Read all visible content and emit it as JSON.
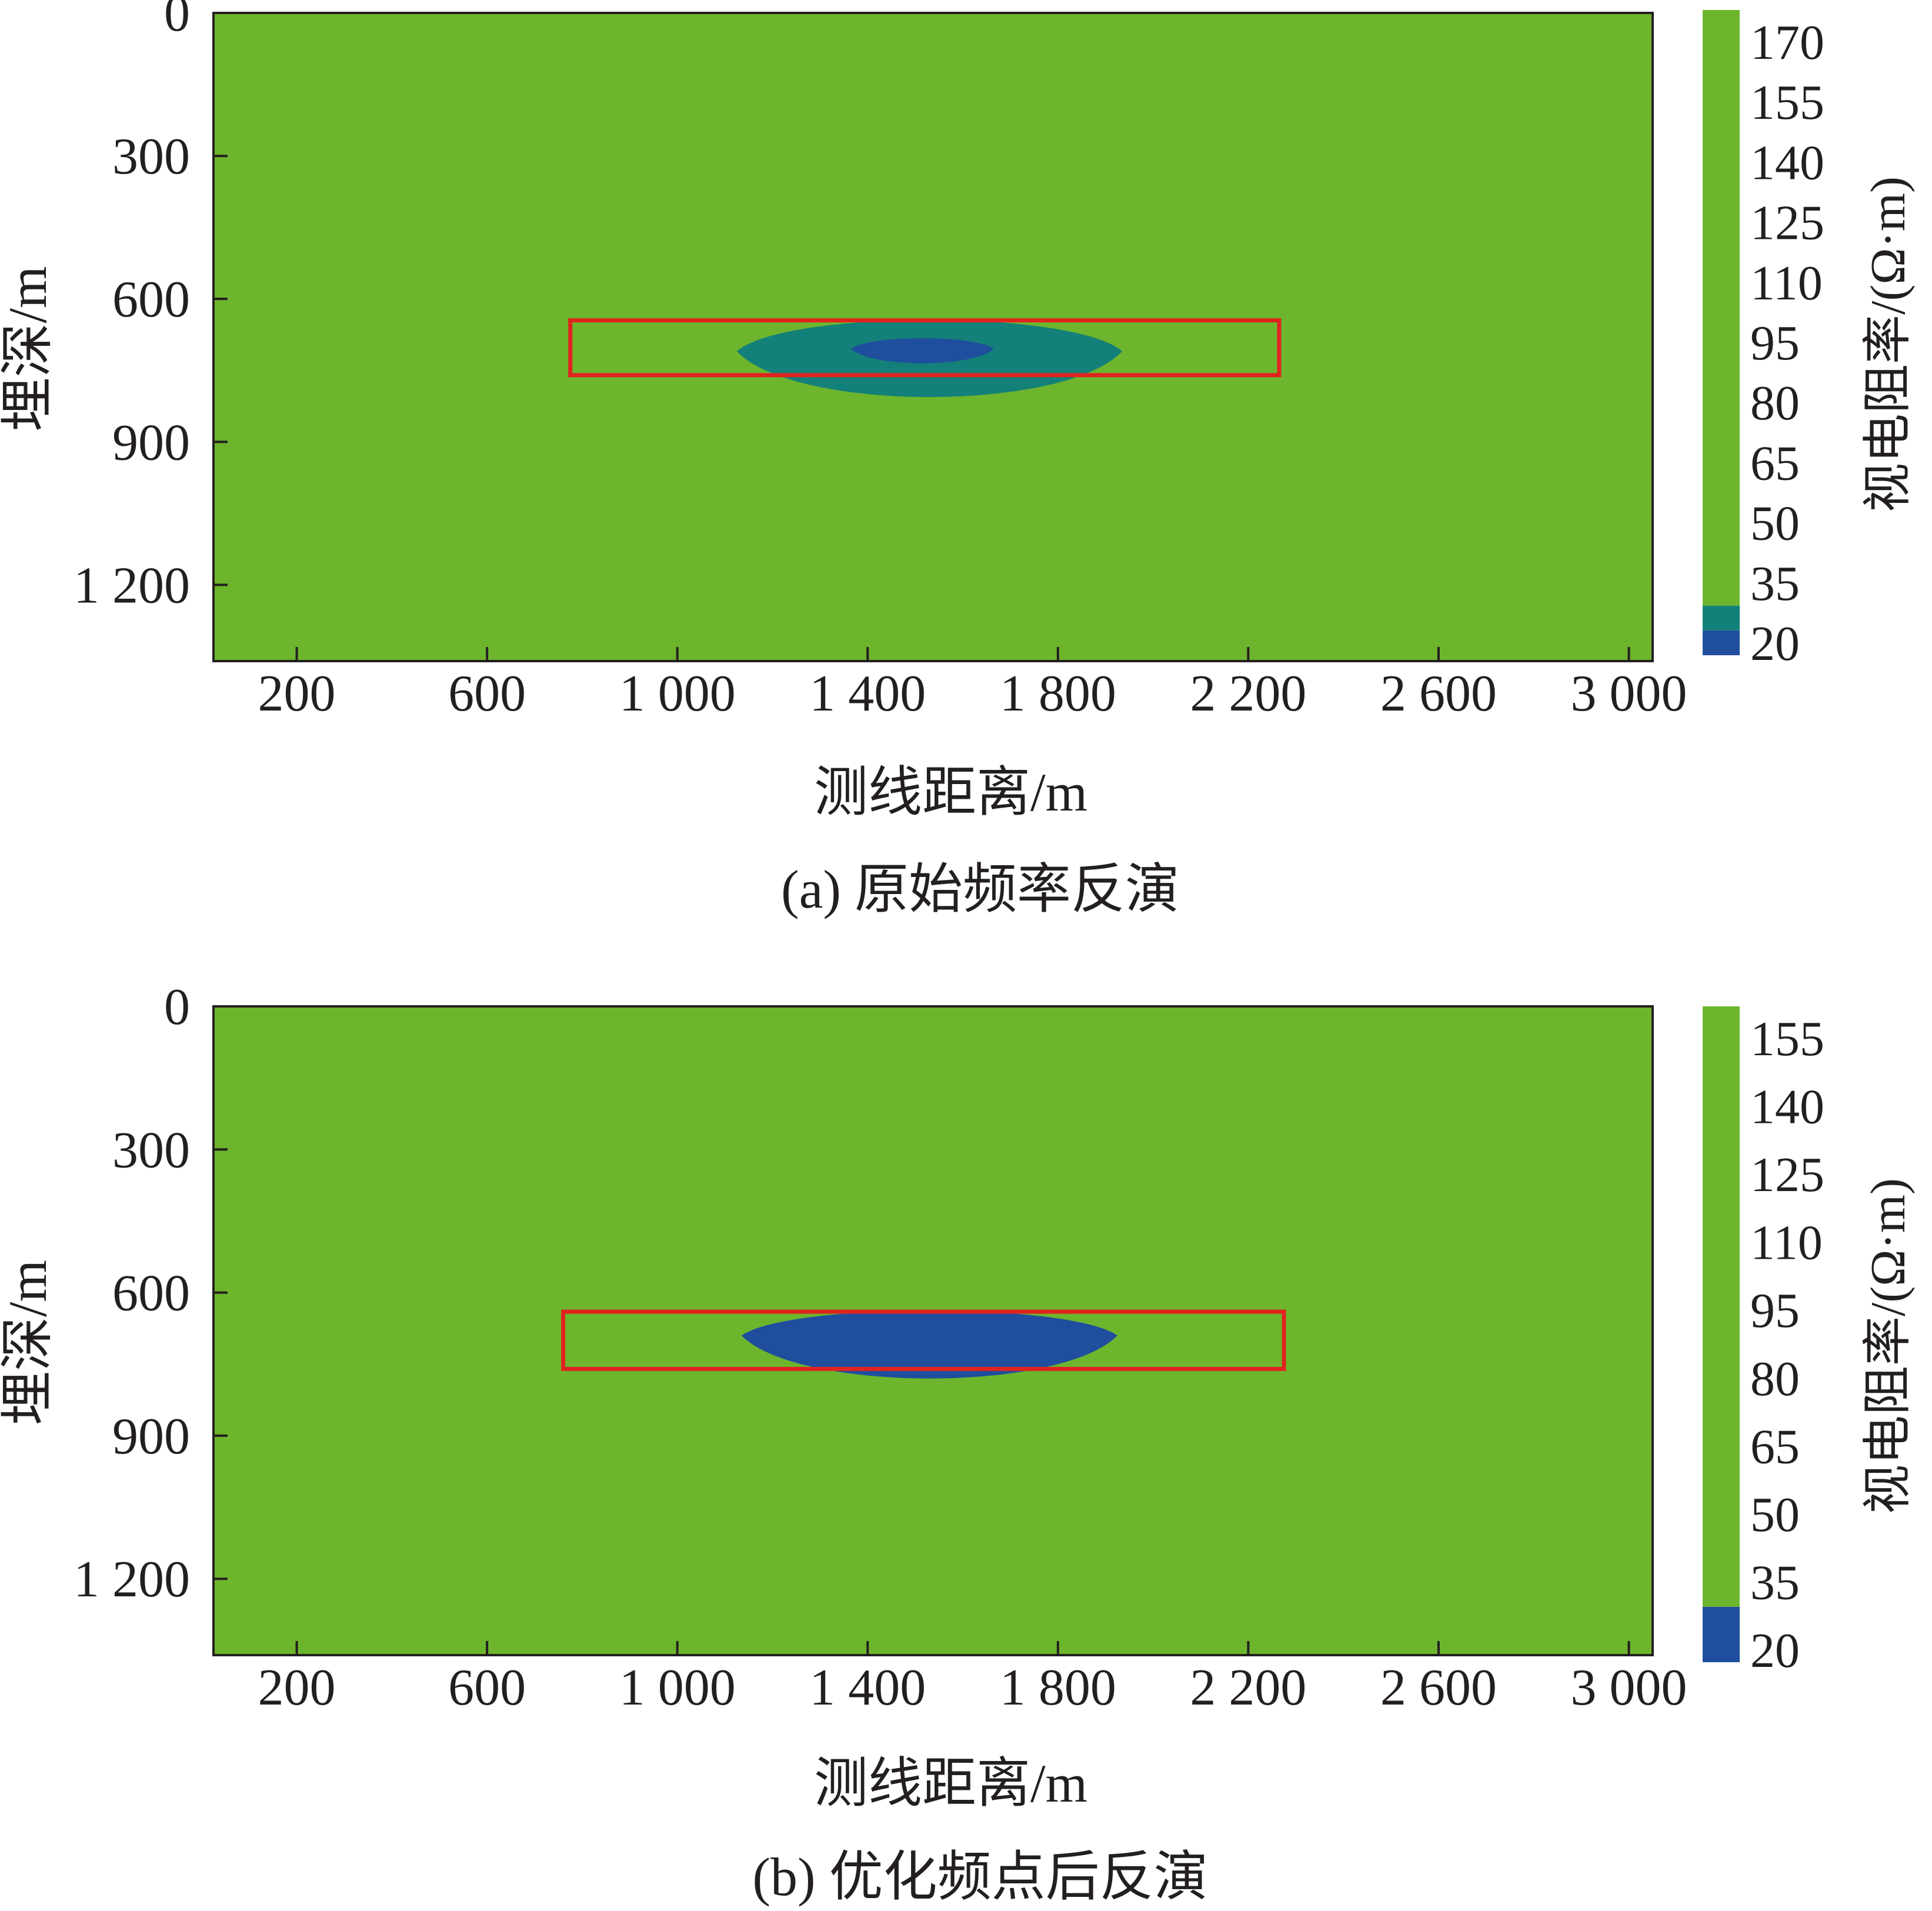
{
  "chart_data": [
    {
      "type": "heatmap",
      "panel": "a",
      "caption": "(a)  原始频率反演",
      "xlabel": "测线距离/m",
      "ylabel": "埋深/m",
      "x_ticks": [
        200,
        600,
        1000,
        1400,
        1800,
        2200,
        2600,
        3000
      ],
      "x_tick_labels": [
        "200",
        "600",
        "1 000",
        "1 400",
        "1 800",
        "2 200",
        "2 600",
        "3 000"
      ],
      "xlim": [
        25,
        3050
      ],
      "y_ticks": [
        0,
        300,
        600,
        900,
        1200
      ],
      "y_tick_labels": [
        "0",
        "300",
        "600",
        "900",
        "1 200"
      ],
      "ylim": [
        0,
        1360
      ],
      "y_inverted": true,
      "background": {
        "color": "#6db52d"
      },
      "anomalies": [
        {
          "center_x": 1530,
          "center_y": 710,
          "half_width_x": 405,
          "top_y": 622,
          "bottom_y": 838,
          "color": "#14807a"
        },
        {
          "center_x": 1515,
          "center_y": 705,
          "half_width_x": 150,
          "top_y": 675,
          "bottom_y": 745,
          "color": "#1f4e9e"
        }
      ],
      "highlight_box": {
        "x0": 775,
        "x1": 2265,
        "y0": 645,
        "y1": 760,
        "color": "#e0231f"
      },
      "colorbar": {
        "title": "视电阻率/(Ω·m)",
        "ticks": [
          "170",
          "155",
          "140",
          "125",
          "110",
          "95",
          "80",
          "65",
          "50",
          "35",
          "20"
        ],
        "segments": [
          {
            "color": "#1f4e9e",
            "from": 20,
            "to": 26
          },
          {
            "color": "#14807a",
            "from": 26,
            "to": 32
          },
          {
            "color": "#6db52d",
            "from": 32,
            "to": 176
          }
        ],
        "range": [
          20,
          176
        ]
      }
    },
    {
      "type": "heatmap",
      "panel": "b",
      "caption": "(b)  优化频点后反演",
      "xlabel": "测线距离/m",
      "ylabel": "埋深/m",
      "x_ticks": [
        200,
        600,
        1000,
        1400,
        1800,
        2200,
        2600,
        3000
      ],
      "x_tick_labels": [
        "200",
        "600",
        "1 000",
        "1 400",
        "1 800",
        "2 200",
        "2 600",
        "3 000"
      ],
      "xlim": [
        25,
        3050
      ],
      "y_ticks": [
        0,
        300,
        600,
        900,
        1200
      ],
      "y_tick_labels": [
        "0",
        "300",
        "600",
        "900",
        "1 200"
      ],
      "ylim": [
        0,
        1360
      ],
      "y_inverted": true,
      "background": {
        "color": "#6db52d"
      },
      "anomalies": [
        {
          "center_x": 1530,
          "center_y": 690,
          "half_width_x": 395,
          "top_y": 620,
          "bottom_y": 810,
          "color": "#1f4e9e"
        }
      ],
      "highlight_box": {
        "x0": 760,
        "x1": 2275,
        "y0": 640,
        "y1": 760,
        "color": "#e0231f"
      },
      "colorbar": {
        "title": "视电阻率/(Ω·m)",
        "ticks": [
          "155",
          "140",
          "125",
          "110",
          "95",
          "80",
          "65",
          "50",
          "35",
          "20"
        ],
        "segments": [
          {
            "color": "#1f4e9e",
            "from": 20,
            "to": 32
          },
          {
            "color": "#6db52d",
            "from": 32,
            "to": 162
          }
        ],
        "range": [
          20,
          162
        ]
      }
    }
  ]
}
